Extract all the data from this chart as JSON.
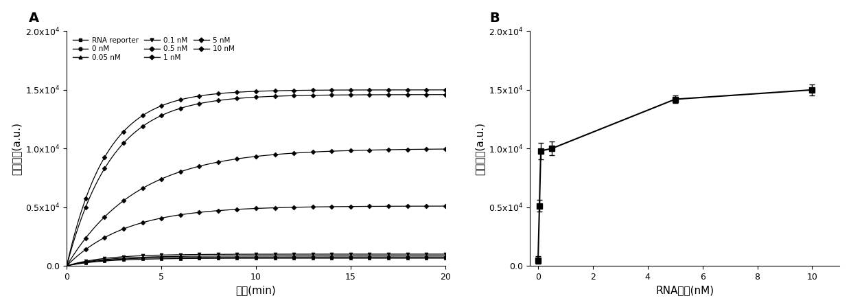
{
  "panel_A": {
    "xlabel": "时间(min)",
    "ylabel": "荧光强度(a.u.)",
    "xlim": [
      0,
      20
    ],
    "ylim": [
      0,
      20000
    ],
    "yticks": [
      0,
      5000,
      10000,
      15000,
      20000
    ],
    "xticks": [
      0,
      5,
      10,
      15,
      20
    ],
    "series": [
      {
        "label": "RNA reporter",
        "vmax": 650,
        "k": 0.5,
        "marker": "s",
        "ms": 3.5
      },
      {
        "label": "0 nM",
        "vmax": 750,
        "k": 0.5,
        "marker": "o",
        "ms": 3.5
      },
      {
        "label": "0.05 nM",
        "vmax": 850,
        "k": 0.5,
        "marker": "^",
        "ms": 3.5
      },
      {
        "label": "0.1 nM",
        "vmax": 1000,
        "k": 0.5,
        "marker": "v",
        "ms": 3.5
      },
      {
        "label": "0.5 nM",
        "vmax": 5100,
        "k": 0.32,
        "marker": "D",
        "ms": 3.5
      },
      {
        "label": "1 nM",
        "vmax": 10000,
        "k": 0.27,
        "marker": "D",
        "ms": 3.5
      },
      {
        "label": "5 nM",
        "vmax": 14600,
        "k": 0.42,
        "marker": "D",
        "ms": 3.5
      },
      {
        "label": "10 nM",
        "vmax": 15000,
        "k": 0.48,
        "marker": "D",
        "ms": 3.5
      }
    ]
  },
  "panel_B": {
    "xlabel": "RNA浓度(nM)",
    "ylabel": "荧光强度(a.u.)",
    "xlim": [
      -0.3,
      11
    ],
    "ylim": [
      0,
      20000
    ],
    "yticks": [
      0,
      5000,
      10000,
      15000,
      20000
    ],
    "xticks": [
      0,
      2,
      4,
      6,
      8,
      10
    ],
    "x_data": [
      0,
      0.05,
      0.1,
      0.5,
      5,
      10
    ],
    "y_data": [
      500,
      5100,
      9800,
      10000,
      14200,
      15000
    ],
    "y_err": [
      300,
      500,
      700,
      600,
      350,
      450
    ]
  }
}
